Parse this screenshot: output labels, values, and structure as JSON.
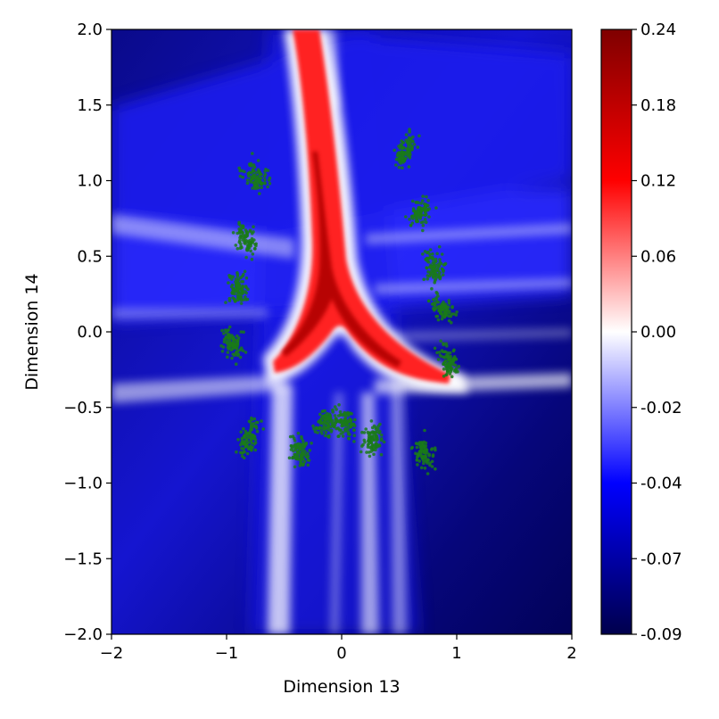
{
  "chart_data": {
    "type": "heatmap",
    "title": "",
    "xlabel": "Dimension 13",
    "ylabel": "Dimension 14",
    "xlim": [
      -2,
      2
    ],
    "ylim": [
      -2,
      2
    ],
    "x_ticks": [
      -2,
      -1,
      0,
      1,
      2
    ],
    "x_tick_labels": [
      "−2",
      "−1",
      "0",
      "1",
      "2"
    ],
    "y_ticks": [
      -2.0,
      -1.5,
      -1.0,
      -0.5,
      0.0,
      0.5,
      1.0,
      1.5,
      2.0
    ],
    "y_tick_labels": [
      "−2.0",
      "−1.5",
      "−1.0",
      "−0.5",
      "0.0",
      "0.5",
      "1.0",
      "1.5",
      "2.0"
    ],
    "grid": false,
    "colormap": "seismic",
    "colorbar": {
      "range": [
        -0.09,
        0.24
      ],
      "ticks": [
        0.24,
        0.18,
        0.12,
        0.06,
        0.0,
        -0.02,
        -0.04,
        -0.07,
        -0.09
      ],
      "tick_labels": [
        "0.24",
        "0.18",
        "0.12",
        "0.06",
        "0.00",
        "-0.02",
        "-0.04",
        "-0.07",
        "-0.09"
      ],
      "colors": [
        "#00004c",
        "#0000ff",
        "#ffffff",
        "#ff0000",
        "#7f0000"
      ]
    },
    "scatter": {
      "name": "",
      "color": "#1a7a1a",
      "clusters": [
        {
          "x": -0.75,
          "y": 1.03
        },
        {
          "x": -0.83,
          "y": 0.62
        },
        {
          "x": -0.9,
          "y": 0.29
        },
        {
          "x": -0.95,
          "y": -0.08
        },
        {
          "x": -0.8,
          "y": -0.7
        },
        {
          "x": -0.37,
          "y": -0.8
        },
        {
          "x": -0.13,
          "y": -0.6
        },
        {
          "x": 0.03,
          "y": -0.6
        },
        {
          "x": 0.27,
          "y": -0.72
        },
        {
          "x": 0.72,
          "y": -0.8
        },
        {
          "x": 0.55,
          "y": 1.2
        },
        {
          "x": 0.68,
          "y": 0.78
        },
        {
          "x": 0.8,
          "y": 0.43
        },
        {
          "x": 0.87,
          "y": 0.16
        },
        {
          "x": 0.93,
          "y": -0.2
        }
      ]
    }
  }
}
